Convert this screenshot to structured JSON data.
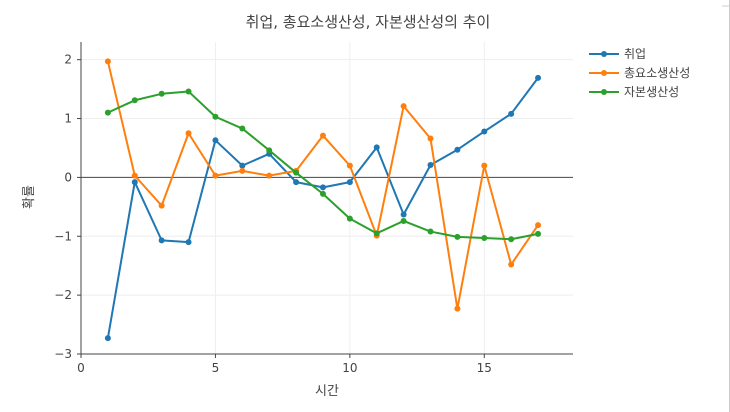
{
  "chart_data": {
    "type": "line",
    "title": "취업, 총요소생산성, 자본생산성의 추이",
    "xlabel": "시간",
    "ylabel": "확률",
    "xlim": [
      0,
      18.3
    ],
    "ylim": [
      -3,
      2.3
    ],
    "xticks": [
      0,
      5,
      10,
      15
    ],
    "yticks": [
      -3,
      -2,
      -1,
      0,
      1,
      2
    ],
    "x": [
      1,
      2,
      3,
      4,
      5,
      6,
      7,
      8,
      9,
      10,
      11,
      12,
      13,
      14,
      15,
      16,
      17
    ],
    "legend_position": "top-right",
    "grid": true,
    "zero_line": true,
    "series": [
      {
        "name": "취업",
        "color": "#1f77b4",
        "values": [
          -2.73,
          -0.08,
          -1.07,
          -1.1,
          0.63,
          0.2,
          0.4,
          -0.08,
          -0.17,
          -0.08,
          0.51,
          -0.63,
          0.21,
          0.47,
          0.78,
          1.08,
          1.69
        ]
      },
      {
        "name": "총요소생산성",
        "color": "#ff7f0e",
        "values": [
          1.97,
          0.03,
          -0.48,
          0.75,
          0.03,
          0.11,
          0.03,
          0.11,
          0.71,
          0.2,
          -0.99,
          1.21,
          0.66,
          -2.23,
          0.2,
          -1.48,
          -0.81
        ]
      },
      {
        "name": "자본생산성",
        "color": "#2ca02c",
        "values": [
          1.1,
          1.31,
          1.42,
          1.46,
          1.03,
          0.83,
          0.46,
          0.08,
          -0.28,
          -0.7,
          -0.95,
          -0.74,
          -0.92,
          -1.01,
          -1.03,
          -1.05,
          -0.96
        ]
      }
    ]
  }
}
